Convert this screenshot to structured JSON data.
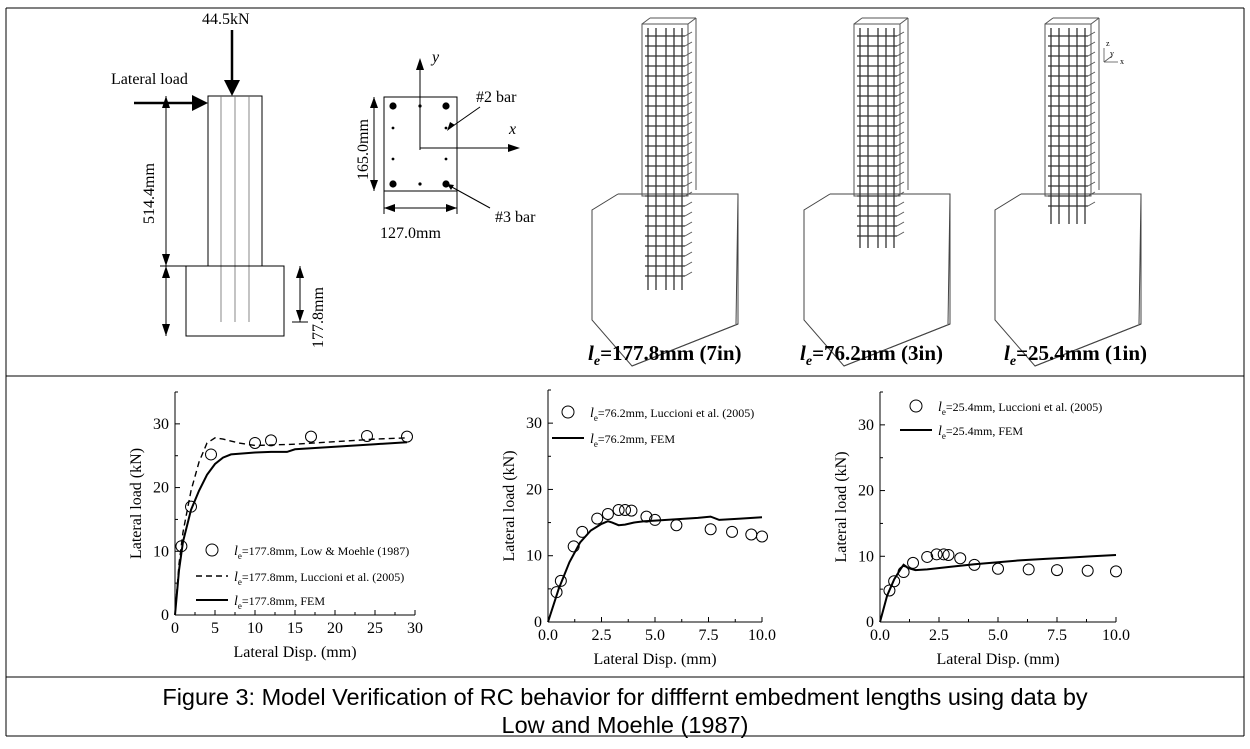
{
  "schematic": {
    "axial_load": "44.5kN",
    "lateral_load": "Lateral load",
    "column_height": "514.4mm",
    "footing_height": "177.8mm",
    "section_depth": "165.0mm",
    "section_width": "127.0mm",
    "axis_x": "x",
    "axis_y": "y",
    "bar2": "#2 bar",
    "bar3": "#3 bar"
  },
  "models": [
    {
      "le": "l",
      "sub": "e",
      "rest": "=177.8mm (7in)"
    },
    {
      "le": "l",
      "sub": "e",
      "rest": "=76.2mm (3in)"
    },
    {
      "le": "l",
      "sub": "e",
      "rest": "=25.4mm (1in)"
    }
  ],
  "triad": {
    "z": "z",
    "y": "y",
    "x": "x"
  },
  "caption": {
    "line1": "Figure 3: Model Verification of RC behavior for difffernt embedment lengths using data by",
    "line2": "Low and Moehle (1987)"
  },
  "chart_data": [
    {
      "type": "line",
      "xlabel": "Lateral Disp. (mm)",
      "ylabel": "Lateral load (kN)",
      "xlim": [
        0,
        30
      ],
      "ylim": [
        0,
        35
      ],
      "xticks": [
        0,
        5,
        10,
        15,
        20,
        25,
        30
      ],
      "xtick_labels": [
        "0",
        "5",
        "10",
        "15",
        "20",
        "25",
        "30"
      ],
      "yticks": [
        0,
        10,
        20,
        30
      ],
      "ytick_labels": [
        "0",
        "10",
        "20",
        "30"
      ],
      "legend_position": "bottom-left",
      "series": [
        {
          "name": "=177.8mm,  Low & Moehle (1987)",
          "style": "circle",
          "x": [
            0.8,
            2.0,
            4.5,
            10.0,
            12.0,
            17.0,
            24.0,
            29.0
          ],
          "y": [
            10.8,
            17.0,
            25.2,
            27.0,
            27.4,
            28.0,
            28.1,
            28.0
          ]
        },
        {
          "name": "=177.8mm,  Luccioni et al. (2005)",
          "style": "dashed",
          "x": [
            0,
            0.5,
            1.0,
            2.0,
            3.0,
            4.0,
            5.0,
            6.0,
            8.0,
            10.0,
            15.0,
            20.0,
            25.0,
            29.0
          ],
          "y": [
            0,
            8.0,
            13.0,
            19.5,
            24.0,
            27.0,
            27.8,
            27.6,
            27.0,
            26.6,
            26.8,
            27.2,
            27.6,
            27.8
          ]
        },
        {
          "name": "=177.8mm, FEM",
          "style": "solid",
          "x": [
            0,
            0.5,
            1.0,
            2.0,
            3.0,
            4.0,
            5.0,
            6.0,
            7.0,
            8.0,
            10.0,
            12.0,
            14.0,
            15.0,
            20.0,
            25.0,
            29.0
          ],
          "y": [
            0,
            7.0,
            11.5,
            16.5,
            19.5,
            22.0,
            23.7,
            24.7,
            25.2,
            25.3,
            25.5,
            25.6,
            25.6,
            26.0,
            26.4,
            26.8,
            27.1
          ]
        }
      ]
    },
    {
      "type": "line",
      "xlabel": "Lateral Disp. (mm)",
      "ylabel": "Lateral load (kN)",
      "xlim": [
        0,
        10
      ],
      "ylim": [
        0,
        35
      ],
      "xticks": [
        0,
        2.5,
        5,
        7.5,
        10
      ],
      "xtick_labels": [
        "0.0",
        "2.5",
        "5.0",
        "7.5",
        "10.0"
      ],
      "yticks": [
        0,
        10,
        20,
        30
      ],
      "ytick_labels": [
        "0",
        "10",
        "20",
        "30"
      ],
      "legend_position": "top-left",
      "series": [
        {
          "name": "=76.2mm, Luccioni et al. (2005)",
          "style": "circle",
          "x": [
            0.4,
            0.6,
            1.2,
            1.6,
            2.3,
            2.8,
            3.3,
            3.6,
            3.9,
            4.6,
            5.0,
            6.0,
            7.6,
            8.6,
            9.5,
            10.0
          ],
          "y": [
            4.5,
            6.2,
            11.4,
            13.6,
            15.6,
            16.3,
            16.9,
            16.9,
            16.8,
            15.9,
            15.4,
            14.6,
            14.0,
            13.6,
            13.2,
            12.9
          ]
        },
        {
          "name": "=76.2mm, FEM",
          "style": "solid",
          "x": [
            0,
            0.5,
            1.0,
            1.5,
            2.0,
            2.5,
            2.8,
            3.0,
            3.3,
            3.6,
            4.0,
            4.5,
            5.0,
            6.0,
            7.0,
            7.6,
            8.0,
            9.0,
            10.0
          ],
          "y": [
            0,
            5.0,
            9.0,
            12.0,
            13.8,
            14.8,
            15.2,
            15.0,
            14.6,
            14.7,
            15.0,
            15.2,
            15.3,
            15.5,
            15.7,
            15.9,
            15.4,
            15.6,
            15.8
          ]
        }
      ]
    },
    {
      "type": "line",
      "xlabel": "Lateral Disp. (mm)",
      "ylabel": "Lateral load (kN)",
      "xlim": [
        0,
        10
      ],
      "ylim": [
        0,
        35
      ],
      "xticks": [
        0,
        2.5,
        5,
        7.5,
        10
      ],
      "xtick_labels": [
        "0.0",
        "2.5",
        "5.0",
        "7.5",
        "10.0"
      ],
      "yticks": [
        0,
        10,
        20,
        30
      ],
      "ytick_labels": [
        "0",
        "10",
        "20",
        "30"
      ],
      "legend_position": "top-left",
      "series": [
        {
          "name": "=25.4mm, Luccioni et al. (2005)",
          "style": "circle",
          "x": [
            0.4,
            0.6,
            1.0,
            1.4,
            2.0,
            2.4,
            2.7,
            2.9,
            3.4,
            4.0,
            5.0,
            6.3,
            7.5,
            8.8,
            10.0
          ],
          "y": [
            4.8,
            6.2,
            7.6,
            9.0,
            9.9,
            10.3,
            10.3,
            10.2,
            9.7,
            8.7,
            8.1,
            8.0,
            7.9,
            7.8,
            7.7
          ]
        },
        {
          "name": "=25.4mm, FEM",
          "style": "solid",
          "x": [
            0,
            0.3,
            0.6,
            0.9,
            1.0,
            1.2,
            1.5,
            2.0,
            3.0,
            4.0,
            5.0,
            6.0,
            7.0,
            8.0,
            9.0,
            10.0
          ],
          "y": [
            0,
            4.0,
            6.5,
            8.2,
            8.7,
            8.2,
            7.9,
            8.0,
            8.4,
            8.8,
            9.1,
            9.4,
            9.6,
            9.8,
            10.0,
            10.2
          ]
        }
      ]
    }
  ]
}
